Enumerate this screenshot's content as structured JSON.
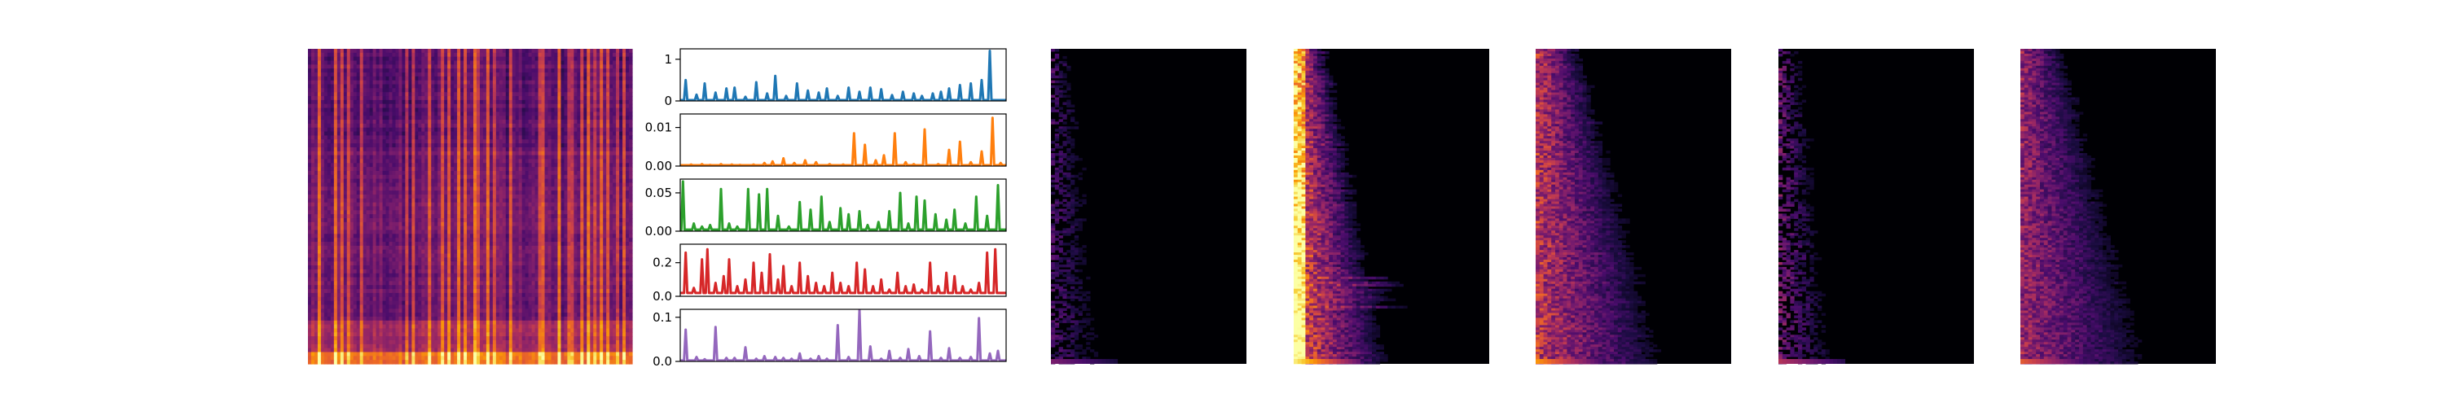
{
  "figure": {
    "background": "#ffffff",
    "colormap": "inferno",
    "colormap_colors": [
      "#000004",
      "#1b0c41",
      "#4a0c6b",
      "#781c6d",
      "#a52c60",
      "#cf4446",
      "#ed6925",
      "#fb9b06",
      "#f7d13d",
      "#fcffa4"
    ]
  },
  "chart_data": [
    {
      "type": "heatmap",
      "panel": "input-spectrogram",
      "pattern": "broadband",
      "description_colormap": "inferno",
      "axes_visible": false
    },
    {
      "type": "line",
      "panel": "activation-1",
      "color": "#1f77b4",
      "xlim": [
        0,
        120
      ],
      "ylim": [
        0,
        1.25
      ],
      "yticks": [
        {
          "value": 0,
          "label": "0"
        },
        {
          "value": 1,
          "label": "1"
        }
      ],
      "peaks": [
        [
          2,
          0.5
        ],
        [
          6,
          0.15
        ],
        [
          9,
          0.42
        ],
        [
          13,
          0.2
        ],
        [
          17,
          0.3
        ],
        [
          20,
          0.32
        ],
        [
          24,
          0.1
        ],
        [
          28,
          0.45
        ],
        [
          32,
          0.18
        ],
        [
          35,
          0.6
        ],
        [
          39,
          0.12
        ],
        [
          43,
          0.42
        ],
        [
          47,
          0.25
        ],
        [
          51,
          0.2
        ],
        [
          54,
          0.3
        ],
        [
          58,
          0.12
        ],
        [
          62,
          0.32
        ],
        [
          66,
          0.22
        ],
        [
          70,
          0.32
        ],
        [
          74,
          0.28
        ],
        [
          78,
          0.14
        ],
        [
          82,
          0.22
        ],
        [
          86,
          0.18
        ],
        [
          89,
          0.12
        ],
        [
          93,
          0.18
        ],
        [
          96,
          0.22
        ],
        [
          99,
          0.3
        ],
        [
          103,
          0.38
        ],
        [
          107,
          0.42
        ],
        [
          111,
          0.5
        ],
        [
          114,
          1.2
        ]
      ],
      "baseline": 0.02
    },
    {
      "type": "line",
      "panel": "activation-2",
      "color": "#ff7f0e",
      "xlim": [
        0,
        120
      ],
      "ylim": [
        0,
        0.0135
      ],
      "yticks": [
        {
          "value": 0,
          "label": "0.00"
        },
        {
          "value": 0.01,
          "label": "0.01"
        }
      ],
      "peaks": [
        [
          4,
          0.0004
        ],
        [
          8,
          0.0005
        ],
        [
          11,
          0.0003
        ],
        [
          15,
          0.0005
        ],
        [
          19,
          0.0004
        ],
        [
          22,
          0.0003
        ],
        [
          27,
          0.0004
        ],
        [
          31,
          0.0008
        ],
        [
          34,
          0.0012
        ],
        [
          38,
          0.002
        ],
        [
          42,
          0.0008
        ],
        [
          46,
          0.0015
        ],
        [
          50,
          0.001
        ],
        [
          55,
          0.0005
        ],
        [
          60,
          0.0004
        ],
        [
          64,
          0.0085
        ],
        [
          68,
          0.0055
        ],
        [
          72,
          0.0015
        ],
        [
          75,
          0.0028
        ],
        [
          79,
          0.0085
        ],
        [
          83,
          0.001
        ],
        [
          86,
          0.0005
        ],
        [
          90,
          0.0095
        ],
        [
          95,
          0.0005
        ],
        [
          99,
          0.0042
        ],
        [
          103,
          0.0063
        ],
        [
          107,
          0.001
        ],
        [
          111,
          0.0038
        ],
        [
          115,
          0.0125
        ],
        [
          118,
          0.0008
        ]
      ],
      "baseline": 0.0002
    },
    {
      "type": "line",
      "panel": "activation-3",
      "color": "#2ca02c",
      "xlim": [
        0,
        120
      ],
      "ylim": [
        0,
        0.068
      ],
      "yticks": [
        {
          "value": 0,
          "label": "0.00"
        },
        {
          "value": 0.05,
          "label": "0.05"
        }
      ],
      "peaks": [
        [
          1,
          0.065
        ],
        [
          5,
          0.01
        ],
        [
          8,
          0.006
        ],
        [
          11,
          0.008
        ],
        [
          15,
          0.055
        ],
        [
          18,
          0.01
        ],
        [
          21,
          0.006
        ],
        [
          25,
          0.055
        ],
        [
          29,
          0.048
        ],
        [
          32,
          0.055
        ],
        [
          36,
          0.02
        ],
        [
          40,
          0.006
        ],
        [
          44,
          0.038
        ],
        [
          48,
          0.028
        ],
        [
          52,
          0.045
        ],
        [
          55,
          0.012
        ],
        [
          59,
          0.03
        ],
        [
          62,
          0.022
        ],
        [
          66,
          0.026
        ],
        [
          69,
          0.008
        ],
        [
          73,
          0.012
        ],
        [
          77,
          0.026
        ],
        [
          81,
          0.05
        ],
        [
          84,
          0.01
        ],
        [
          87,
          0.045
        ],
        [
          90,
          0.04
        ],
        [
          94,
          0.022
        ],
        [
          98,
          0.015
        ],
        [
          101,
          0.028
        ],
        [
          105,
          0.01
        ],
        [
          109,
          0.045
        ],
        [
          113,
          0.02
        ],
        [
          117,
          0.06
        ]
      ],
      "baseline": 0.002
    },
    {
      "type": "line",
      "panel": "activation-4",
      "color": "#d62728",
      "xlim": [
        0,
        120
      ],
      "ylim": [
        0,
        0.31
      ],
      "yticks": [
        {
          "value": 0,
          "label": "0.0"
        },
        {
          "value": 0.2,
          "label": "0.2"
        }
      ],
      "peaks": [
        [
          2,
          0.26
        ],
        [
          5,
          0.05
        ],
        [
          8,
          0.22
        ],
        [
          10,
          0.28
        ],
        [
          13,
          0.08
        ],
        [
          16,
          0.12
        ],
        [
          18,
          0.22
        ],
        [
          21,
          0.06
        ],
        [
          24,
          0.1
        ],
        [
          27,
          0.2
        ],
        [
          30,
          0.14
        ],
        [
          33,
          0.25
        ],
        [
          36,
          0.1
        ],
        [
          38,
          0.18
        ],
        [
          41,
          0.06
        ],
        [
          44,
          0.2
        ],
        [
          47,
          0.12
        ],
        [
          50,
          0.08
        ],
        [
          53,
          0.06
        ],
        [
          56,
          0.14
        ],
        [
          59,
          0.08
        ],
        [
          62,
          0.06
        ],
        [
          65,
          0.2
        ],
        [
          68,
          0.16
        ],
        [
          71,
          0.06
        ],
        [
          74,
          0.1
        ],
        [
          77,
          0.04
        ],
        [
          80,
          0.14
        ],
        [
          83,
          0.06
        ],
        [
          86,
          0.07
        ],
        [
          89,
          0.04
        ],
        [
          92,
          0.2
        ],
        [
          95,
          0.06
        ],
        [
          98,
          0.14
        ],
        [
          101,
          0.12
        ],
        [
          104,
          0.06
        ],
        [
          107,
          0.04
        ],
        [
          110,
          0.08
        ],
        [
          113,
          0.26
        ],
        [
          116,
          0.28
        ]
      ],
      "baseline": 0.02
    },
    {
      "type": "line",
      "panel": "activation-5",
      "color": "#9467bd",
      "xlim": [
        0,
        120
      ],
      "ylim": [
        0,
        0.118
      ],
      "yticks": [
        {
          "value": 0,
          "label": "0.0"
        },
        {
          "value": 0.1,
          "label": "0.1"
        }
      ],
      "peaks": [
        [
          2,
          0.072
        ],
        [
          6,
          0.01
        ],
        [
          9,
          0.005
        ],
        [
          13,
          0.078
        ],
        [
          17,
          0.008
        ],
        [
          20,
          0.008
        ],
        [
          24,
          0.032
        ],
        [
          28,
          0.006
        ],
        [
          31,
          0.012
        ],
        [
          35,
          0.01
        ],
        [
          38,
          0.008
        ],
        [
          41,
          0.006
        ],
        [
          44,
          0.018
        ],
        [
          48,
          0.006
        ],
        [
          51,
          0.012
        ],
        [
          54,
          0.006
        ],
        [
          58,
          0.082
        ],
        [
          62,
          0.01
        ],
        [
          66,
          0.116
        ],
        [
          70,
          0.034
        ],
        [
          74,
          0.006
        ],
        [
          77,
          0.024
        ],
        [
          81,
          0.008
        ],
        [
          84,
          0.028
        ],
        [
          88,
          0.012
        ],
        [
          92,
          0.068
        ],
        [
          96,
          0.008
        ],
        [
          99,
          0.03
        ],
        [
          103,
          0.008
        ],
        [
          107,
          0.01
        ],
        [
          110,
          0.098
        ],
        [
          114,
          0.018
        ],
        [
          117,
          0.024
        ]
      ],
      "baseline": 0.002
    },
    {
      "type": "heatmap",
      "panel": "template-1",
      "pattern": "sparse-low",
      "intensity": 0.35,
      "colormap": "inferno",
      "axes_visible": false
    },
    {
      "type": "heatmap",
      "panel": "template-2",
      "pattern": "dense-low",
      "intensity": 1.0,
      "colormap": "inferno",
      "axes_visible": false
    },
    {
      "type": "heatmap",
      "panel": "template-3",
      "pattern": "medium-low",
      "intensity": 0.8,
      "colormap": "inferno",
      "axes_visible": false
    },
    {
      "type": "heatmap",
      "panel": "template-4",
      "pattern": "sparse-low",
      "intensity": 0.5,
      "colormap": "inferno",
      "axes_visible": false
    },
    {
      "type": "heatmap",
      "panel": "template-5",
      "pattern": "medium-low",
      "intensity": 0.65,
      "colormap": "inferno",
      "axes_visible": false
    }
  ]
}
